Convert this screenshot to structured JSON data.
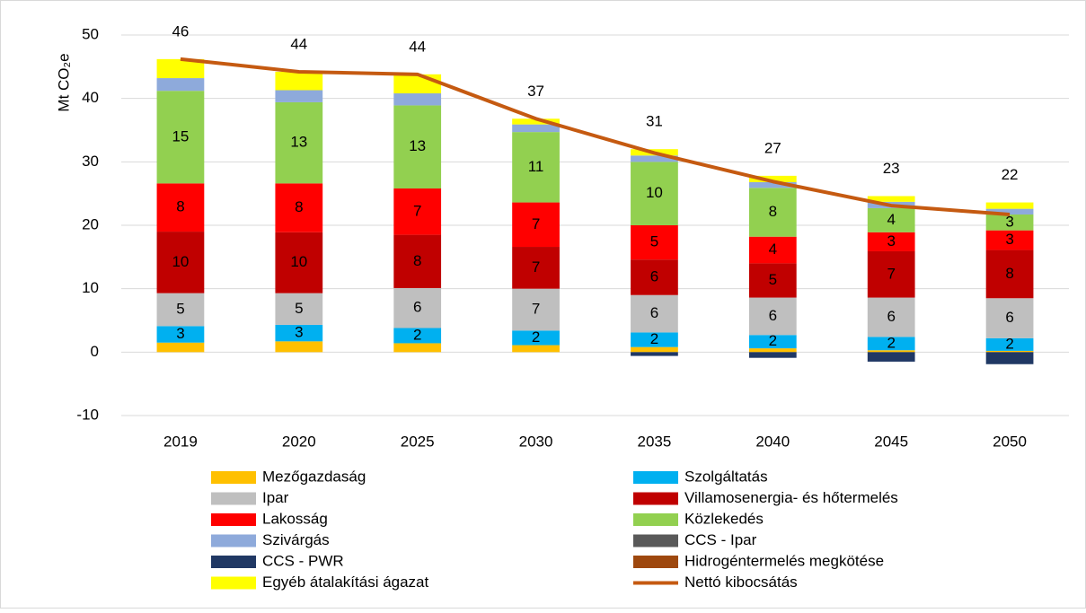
{
  "chart_data": {
    "type": "bar",
    "ylabel": "Mt CO₂e",
    "categories": [
      "2019",
      "2020",
      "2025",
      "2030",
      "2035",
      "2040",
      "2045",
      "2050"
    ],
    "ylim": [
      -10,
      50
    ],
    "yticks": [
      -10,
      0,
      10,
      20,
      30,
      40,
      50
    ],
    "grid": true,
    "series": [
      {
        "name": "Mezőgazdaság",
        "color": "#ffc000",
        "values": [
          1.5,
          1.7,
          1.4,
          1.1,
          0.8,
          0.6,
          0.3,
          0.2
        ]
      },
      {
        "name": "Szolgáltatás",
        "color": "#00b0f0",
        "values": [
          2.6,
          2.6,
          2.4,
          2.3,
          2.3,
          2.1,
          2.1,
          2.0
        ],
        "value_labels": [
          "3",
          "3",
          "2",
          "2",
          "2",
          "2",
          "2",
          "2"
        ]
      },
      {
        "name": "Ipar",
        "color": "#bfbfbf",
        "values": [
          5.2,
          5.0,
          6.3,
          6.6,
          5.9,
          5.9,
          6.2,
          6.3
        ],
        "value_labels": [
          "5",
          "5",
          "6",
          "7",
          "6",
          "6",
          "6",
          "6"
        ]
      },
      {
        "name": "Villamosenergia- és hőtermelés",
        "color": "#c00000",
        "values": [
          9.7,
          9.6,
          8.4,
          6.6,
          5.6,
          5.4,
          7.3,
          7.6
        ],
        "value_labels": [
          "10",
          "10",
          "8",
          "7",
          "6",
          "5",
          "7",
          "8"
        ]
      },
      {
        "name": "Lakosság",
        "color": "#ff0000",
        "values": [
          7.6,
          7.7,
          7.3,
          7.0,
          5.4,
          4.2,
          3.0,
          3.1
        ],
        "value_labels": [
          "8",
          "8",
          "7",
          "7",
          "5",
          "4",
          "3",
          "3"
        ]
      },
      {
        "name": "Közlekedés",
        "color": "#92d050",
        "values": [
          14.6,
          12.8,
          13.1,
          11.1,
          10.0,
          7.7,
          3.8,
          2.5
        ],
        "value_labels": [
          "15",
          "13",
          "13",
          "11",
          "10",
          "8",
          "4",
          "3"
        ]
      },
      {
        "name": "Szivárgás",
        "color": "#8eaadb",
        "values": [
          2.0,
          1.9,
          1.9,
          1.2,
          1.0,
          0.9,
          1.0,
          0.9
        ]
      },
      {
        "name": "CCS - Ipar",
        "color": "#595959",
        "values": [
          0,
          0,
          0,
          0,
          0,
          0,
          0,
          0
        ]
      },
      {
        "name": "CCS - PWR",
        "color": "#203864",
        "values": [
          0,
          0,
          0,
          0,
          -0.6,
          -0.9,
          -1.5,
          -1.9
        ]
      },
      {
        "name": "Hidrogéntermelés megkötése",
        "color": "#9e480e",
        "values": [
          0,
          0,
          0,
          0,
          0,
          0,
          0,
          0
        ]
      },
      {
        "name": "Egyéb átalakítási ágazat",
        "color": "#ffff00",
        "values": [
          3.0,
          2.9,
          3.0,
          0.9,
          1.0,
          1.0,
          0.9,
          1.0
        ]
      },
      {
        "name": "Nettó kibocsátás",
        "type": "line",
        "color": "#c55a11",
        "values": [
          46.2,
          44.2,
          43.8,
          36.8,
          31.4,
          26.9,
          23.1,
          21.7
        ],
        "value_labels": [
          "46",
          "44",
          "44",
          "37",
          "31",
          "27",
          "23",
          "22"
        ]
      }
    ]
  }
}
